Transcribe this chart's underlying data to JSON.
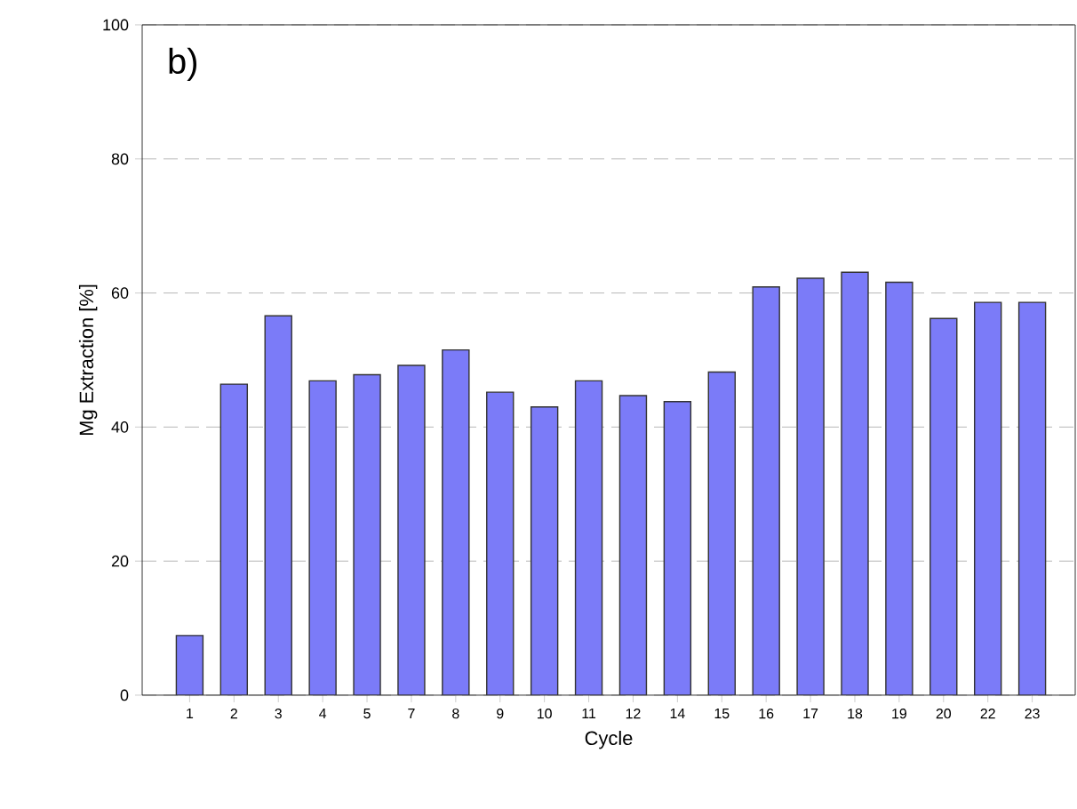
{
  "chart_data": {
    "type": "bar",
    "xlabel": "Cycle",
    "ylabel": "Mg Extraction [%]",
    "annotations": [
      "b)"
    ],
    "categories": [
      "1",
      "2",
      "3",
      "4",
      "5",
      "7",
      "8",
      "9",
      "10",
      "11",
      "12",
      "14",
      "15",
      "16",
      "17",
      "18",
      "19",
      "20",
      "22",
      "23"
    ],
    "values": [
      8.9,
      46.4,
      56.6,
      46.9,
      47.8,
      49.2,
      51.5,
      45.2,
      43.0,
      46.9,
      44.7,
      43.8,
      48.2,
      60.9,
      62.2,
      63.1,
      61.6,
      56.2,
      58.6,
      58.6
    ],
    "color": "#7b7bf8",
    "ylim": [
      0,
      100
    ],
    "yticks": [
      0,
      20,
      40,
      60,
      80,
      100
    ],
    "grid": "y"
  }
}
